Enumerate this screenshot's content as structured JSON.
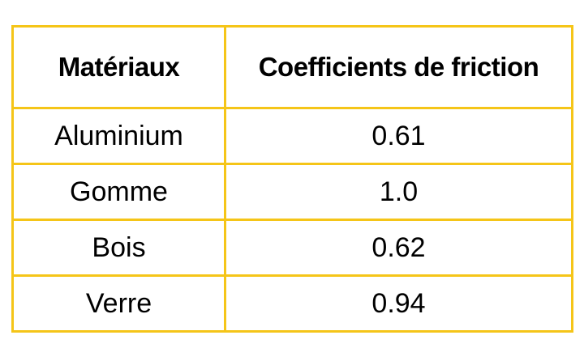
{
  "table": {
    "border_color": "#f5c518",
    "headers": [
      "Matériaux",
      "Coefficients de friction"
    ],
    "rows": [
      [
        "Aluminium",
        "0.61"
      ],
      [
        "Gomme",
        "1.0"
      ],
      [
        "Bois",
        "0.62"
      ],
      [
        "Verre",
        "0.94"
      ]
    ]
  }
}
